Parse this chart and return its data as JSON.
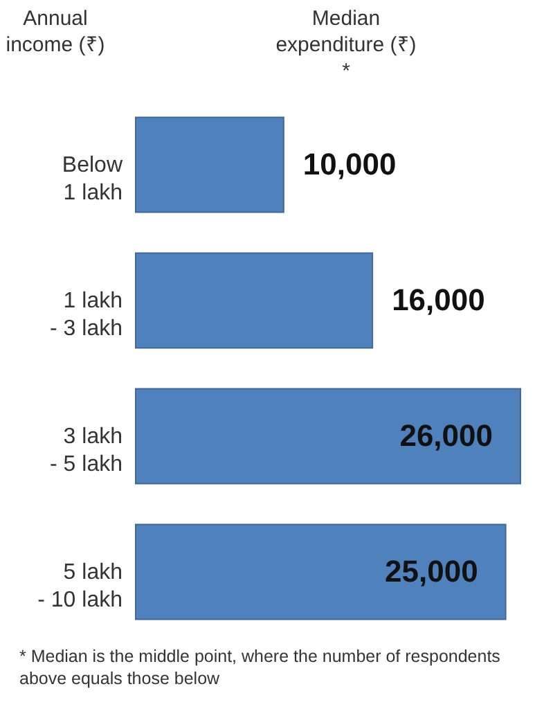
{
  "chart_data": {
    "type": "bar",
    "orientation": "horizontal",
    "xlabel": "Median expenditure (₹) *",
    "ylabel": "Annual income (₹)",
    "categories": [
      "Below 1 lakh",
      "1 lakh - 3 lakh",
      "3 lakh - 5 lakh",
      "5 lakh - 10 lakh"
    ],
    "values": [
      10000,
      16000,
      26000,
      25000
    ],
    "color": "#4f81bd",
    "value_labels": [
      "10,000",
      "16,000",
      "26,000",
      "25,000"
    ],
    "annotations": [
      "* Median is the middle point, where the number of respondents above equals those below"
    ]
  }
}
